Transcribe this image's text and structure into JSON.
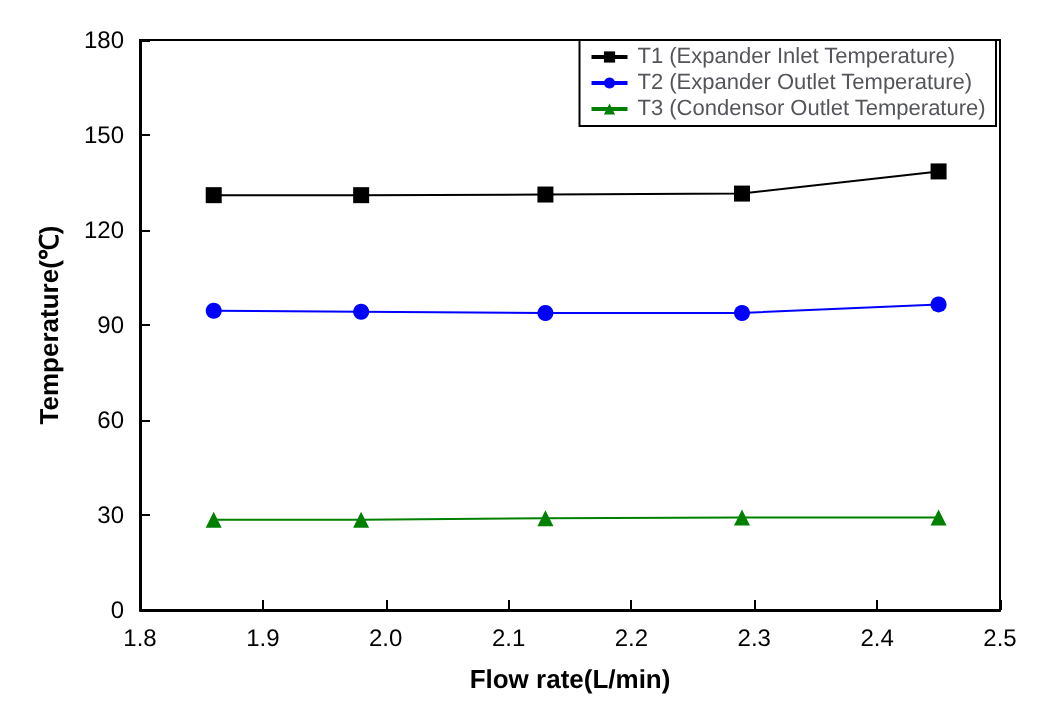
{
  "chart_data": {
    "type": "line",
    "xlabel": "Flow rate(L/min)",
    "ylabel": "Temperature(℃)",
    "x": [
      1.86,
      1.98,
      2.13,
      2.29,
      2.45
    ],
    "series": [
      {
        "name": "T1 (Expander Inlet Temperature)",
        "color": "#000000",
        "marker": "square",
        "values": [
          131,
          131,
          131.2,
          131.5,
          138.5
        ]
      },
      {
        "name": "T2 (Expander Outlet Temperature)",
        "color": "#0000ff",
        "marker": "circle",
        "values": [
          94.5,
          94.2,
          93.8,
          93.8,
          96.5
        ]
      },
      {
        "name": "T3 (Condensor Outlet Temperature)",
        "color": "#008000",
        "marker": "triangle",
        "values": [
          28.5,
          28.5,
          29,
          29.2,
          29.2
        ]
      }
    ],
    "xlim": [
      1.8,
      2.5
    ],
    "xticks": [
      1.8,
      1.9,
      {
        "value": 2,
        "label": "2.0"
      },
      2.1,
      2.2,
      2.3,
      2.4,
      2.5
    ],
    "ylim": [
      0,
      180
    ],
    "yticks": [
      0,
      30,
      60,
      90,
      120,
      150,
      180
    ],
    "legend": "top right",
    "grid": false
  }
}
